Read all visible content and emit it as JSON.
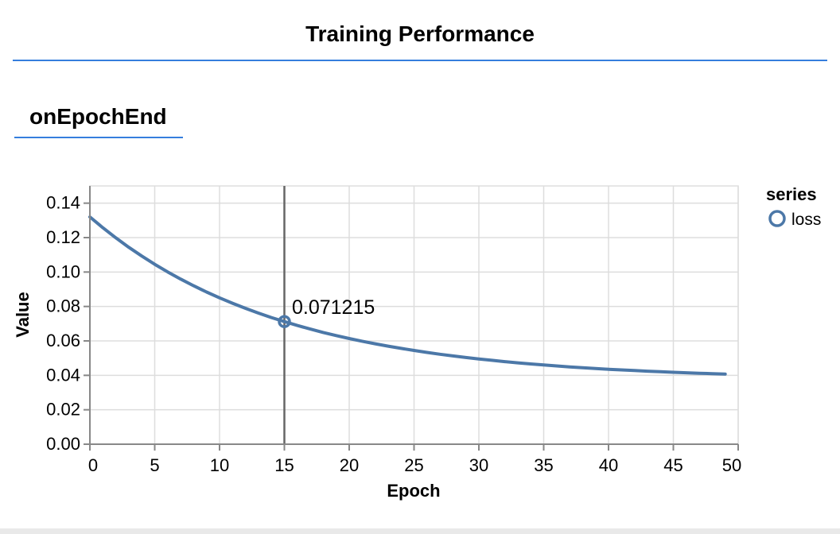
{
  "page": {
    "title": "Training Performance",
    "section_title": "onEpochEnd"
  },
  "colors": {
    "accent": "#357edd",
    "series": "#4c78a8",
    "crosshair": "#666666",
    "grid": "#dddddd",
    "axis_domain": "#888888",
    "text": "#000000",
    "bottom_strip": "#e9e9e9"
  },
  "chart_data": {
    "type": "line",
    "title": "",
    "xlabel": "Epoch",
    "ylabel": "Value",
    "xlim": [
      0,
      50
    ],
    "ylim": [
      0,
      0.15
    ],
    "grid": true,
    "x_ticks": [
      0,
      5,
      10,
      15,
      20,
      25,
      30,
      35,
      40,
      45,
      50
    ],
    "y_ticks": [
      0,
      0.02,
      0.04,
      0.06,
      0.08,
      0.1,
      0.12,
      0.14
    ],
    "y_tick_labels": [
      "0.00",
      "0.02",
      "0.04",
      "0.06",
      "0.08",
      "0.10",
      "0.12",
      "0.14"
    ],
    "legend": {
      "title": "series",
      "position": "top-right",
      "entries": [
        {
          "label": "loss",
          "color": "#4c78a8",
          "marker": "circle-outline"
        }
      ]
    },
    "highlight": {
      "x": 15,
      "value": 0.071215,
      "label": "0.071215"
    },
    "series": [
      {
        "name": "loss",
        "x": [
          0,
          1,
          2,
          3,
          4,
          5,
          6,
          7,
          8,
          9,
          10,
          11,
          12,
          13,
          14,
          15,
          16,
          17,
          18,
          19,
          20,
          21,
          22,
          23,
          24,
          25,
          26,
          27,
          28,
          29,
          30,
          31,
          32,
          33,
          34,
          35,
          36,
          37,
          38,
          39,
          40,
          41,
          42,
          43,
          44,
          45,
          46,
          47,
          48,
          49
        ],
        "values": [
          0.132,
          0.125722,
          0.11986,
          0.114388,
          0.10928,
          0.104511,
          0.100059,
          0.095902,
          0.092022,
          0.0884,
          0.085018,
          0.08186,
          0.078913,
          0.076161,
          0.073592,
          0.071215,
          0.068956,
          0.066866,
          0.064915,
          0.063093,
          0.061393,
          0.059806,
          0.058324,
          0.05694,
          0.055649,
          0.054443,
          0.053317,
          0.052266,
          0.051285,
          0.050369,
          0.049514,
          0.048716,
          0.047971,
          0.047275,
          0.046626,
          0.046019,
          0.045453,
          0.044925,
          0.044432,
          0.043971,
          0.043541,
          0.04314,
          0.042765,
          0.042415,
          0.042088,
          0.041784,
          0.041499,
          0.041234,
          0.040985,
          0.040754
        ]
      }
    ]
  }
}
